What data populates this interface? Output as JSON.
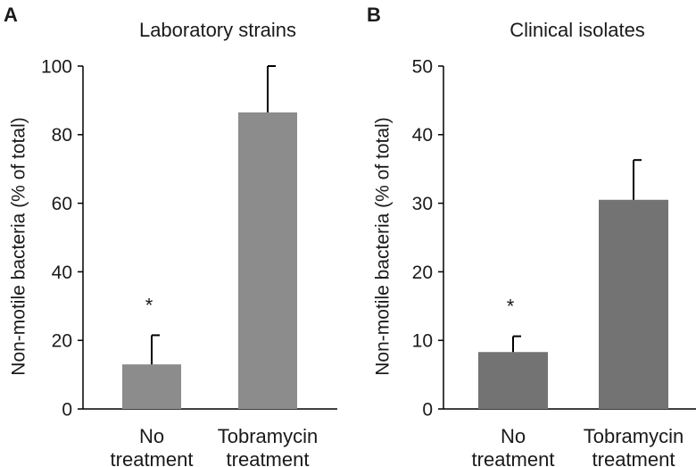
{
  "chart_data": [
    {
      "type": "bar",
      "panel": "A",
      "title": "Laboratory  strains",
      "ylabel": "Non-motile bacteria (% of total)",
      "xlabel": "",
      "ylim": [
        0,
        100
      ],
      "yticks": [
        0,
        20,
        40,
        60,
        80,
        100
      ],
      "categories": [
        [
          "No",
          "treatment"
        ],
        [
          "Tobramycin",
          "treatment"
        ]
      ],
      "values": [
        13,
        86.5
      ],
      "errors": [
        8.5,
        13.5
      ],
      "annotations": [
        "*",
        ""
      ],
      "bar_color": "#8c8c8c"
    },
    {
      "type": "bar",
      "panel": "B",
      "title": "Clinical isolates",
      "ylabel": "Non-motile bacteria (% of total)",
      "xlabel": "",
      "ylim": [
        0,
        50
      ],
      "yticks": [
        0,
        10,
        20,
        30,
        40,
        50
      ],
      "categories": [
        [
          "No",
          "treatment"
        ],
        [
          "Tobramycin",
          "treatment"
        ]
      ],
      "values": [
        8.3,
        30.5
      ],
      "errors": [
        2.3,
        5.8
      ],
      "annotations": [
        "*",
        ""
      ],
      "bar_color": "#737373"
    }
  ]
}
